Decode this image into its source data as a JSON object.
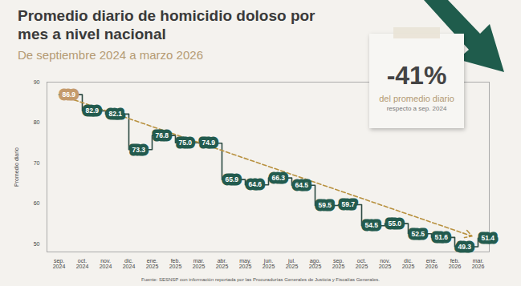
{
  "chart_data": {
    "type": "line",
    "title": "Promedio diario de homicidio doloso por mes a nivel nacional",
    "subtitle": "De septiembre 2024 a marzo 2026",
    "ylabel": "Promedio diario",
    "categories": [
      "sep. 2024",
      "oct. 2024",
      "nov. 2024",
      "dic. 2024",
      "ene. 2025",
      "feb. 2025",
      "mar. 2025",
      "abr. 2025",
      "may. 2025",
      "jun. 2025",
      "jul. 2025",
      "ago. 2025",
      "sep. 2025",
      "oct. 2025",
      "nov. 2025",
      "dic. 2025",
      "ene. 2026",
      "feb. 2026",
      "mar. 2026"
    ],
    "values": [
      86.9,
      82.9,
      82.1,
      73.3,
      76.8,
      75.0,
      74.9,
      65.9,
      64.6,
      66.3,
      64.5,
      59.5,
      59.7,
      54.5,
      55.0,
      52.5,
      51.6,
      49.3,
      51.4
    ],
    "value_labels": [
      "86.9",
      "82.9",
      "82.1",
      "73.3",
      "76.8",
      "75.0",
      "74.9",
      "65.9",
      "64.6",
      "66.3",
      "64.5",
      "59.5",
      "59.7",
      "54.5",
      "55.0",
      "52.5",
      "51.6",
      "49.3",
      "51.4"
    ],
    "data_labels": true,
    "color": "#2c4a42",
    "colors": [
      "#c49a6c",
      "#235b4e",
      "#235b4e",
      "#235b4e",
      "#235b4e",
      "#235b4e",
      "#235b4e",
      "#235b4e",
      "#235b4e",
      "#235b4e",
      "#235b4e",
      "#235b4e",
      "#235b4e",
      "#235b4e",
      "#235b4e",
      "#235b4e",
      "#235b4e",
      "#235b4e",
      "#235b4e"
    ],
    "line_style": "step",
    "ylim": [
      48,
      90
    ],
    "yticks": [
      50,
      60,
      70,
      80,
      90
    ],
    "grid": false,
    "annotations": [
      "-41%",
      "del promedio diario",
      "respecto a sep. 2024"
    ],
    "source": "Fuente: SESNSP con información reportada por las Procuradurías Generales de Justicia y Fiscalías Generales."
  }
}
